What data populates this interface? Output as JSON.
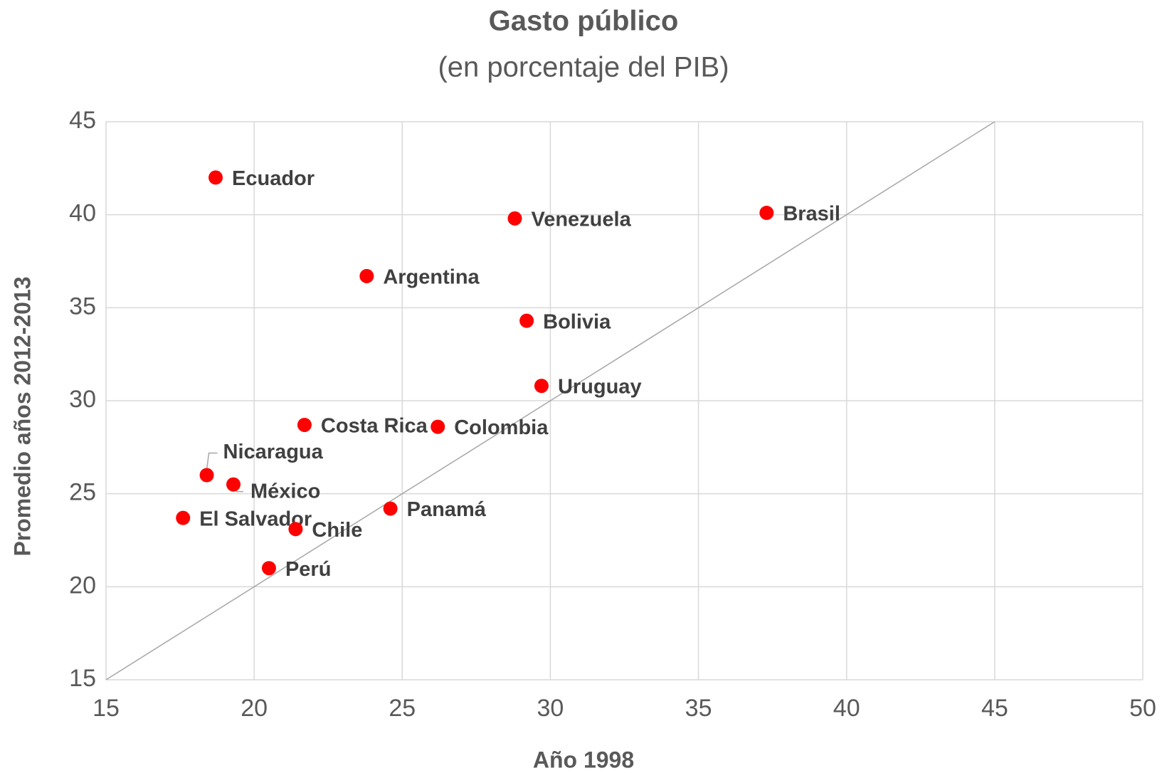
{
  "chart_data": {
    "type": "scatter",
    "title": "Gasto público",
    "subtitle": "(en porcentaje del PIB)",
    "x_label": "Año 1998",
    "y_label": "Promedio años 2012-2013",
    "labels": [
      "Ecuador",
      "Venezuela",
      "Brasil",
      "Argentina",
      "Bolivia",
      "Uruguay",
      "Costa Rica",
      "Colombia",
      "Nicaragua",
      "México",
      "El Salvador",
      "Chile",
      "Panamá",
      "Perú"
    ],
    "x": [
      18.7,
      28.8,
      37.3,
      23.8,
      29.2,
      29.7,
      21.7,
      26.2,
      18.4,
      19.3,
      17.6,
      21.4,
      24.6,
      20.5
    ],
    "y": [
      42.0,
      39.8,
      40.1,
      36.7,
      34.3,
      30.8,
      28.7,
      28.6,
      26.0,
      25.5,
      23.7,
      23.1,
      24.2,
      21.0
    ],
    "color": "#ff0000",
    "reference_line": {
      "x": [
        15,
        45
      ],
      "y": [
        15,
        45
      ],
      "color": "#a6a6a6"
    },
    "xlim": [
      15,
      50
    ],
    "ylim": [
      15,
      45
    ],
    "xticks": [
      15,
      20,
      25,
      30,
      35,
      40,
      45,
      50
    ],
    "yticks": [
      15,
      20,
      25,
      30,
      35,
      40,
      45
    ],
    "grid": true
  }
}
